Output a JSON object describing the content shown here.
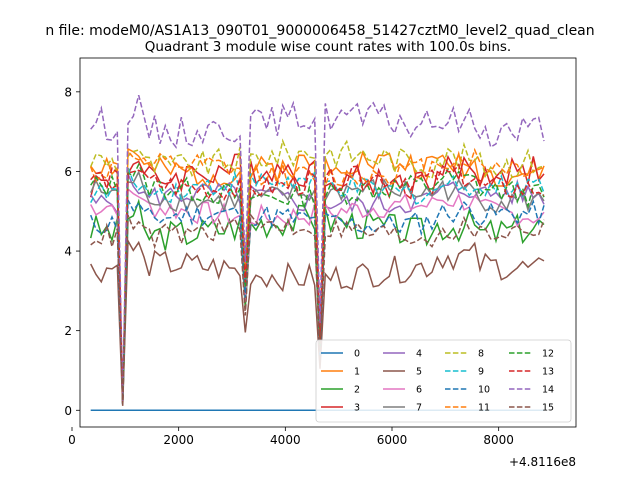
{
  "figure": {
    "suptitle": "n file: modeM0/AS1A13_090T01_9000006458_51427cztM0_level2_quad_clean",
    "title": "Quadrant 3 module wise count rates with 100.0s bins.",
    "x_offset_label": "+4.8116e8"
  },
  "chart_data": {
    "type": "line",
    "title": "Quadrant 3 module wise count rates with 100.0s bins.",
    "xlabel": "",
    "ylabel": "",
    "xlim": [
      150,
      9450
    ],
    "ylim": [
      -0.42,
      8.85
    ],
    "x_ticks": [
      0,
      2000,
      4000,
      6000,
      8000
    ],
    "y_ticks": [
      0,
      2,
      4,
      6,
      8
    ],
    "x_start": 350,
    "x_step": 100,
    "n_points": 86,
    "grid": false,
    "legend_position": "bottom-right",
    "legend_columns": 4,
    "series": [
      {
        "name": "0",
        "color": "#1f77b4",
        "dash": "solid",
        "base": 0.0,
        "amp": 0.0,
        "seed": 1
      },
      {
        "name": "1",
        "color": "#ff7f0e",
        "dash": "solid",
        "base": 6.1,
        "amp": 0.35,
        "seed": 2
      },
      {
        "name": "2",
        "color": "#2ca02c",
        "dash": "solid",
        "base": 4.6,
        "amp": 0.4,
        "seed": 3
      },
      {
        "name": "3",
        "color": "#d62728",
        "dash": "solid",
        "base": 5.9,
        "amp": 0.4,
        "seed": 4
      },
      {
        "name": "4",
        "color": "#9467bd",
        "dash": "solid",
        "base": 5.3,
        "amp": 0.3,
        "seed": 5
      },
      {
        "name": "5",
        "color": "#8c564b",
        "dash": "solid",
        "base": 3.5,
        "amp": 0.35,
        "seed": 6
      },
      {
        "name": "6",
        "color": "#e377c2",
        "dash": "solid",
        "base": 5.0,
        "amp": 0.3,
        "seed": 7
      },
      {
        "name": "7",
        "color": "#7f7f7f",
        "dash": "solid",
        "base": 5.4,
        "amp": 0.3,
        "seed": 8
      },
      {
        "name": "8",
        "color": "#bcbd22",
        "dash": "dashed",
        "base": 6.3,
        "amp": 0.35,
        "seed": 9
      },
      {
        "name": "9",
        "color": "#17becf",
        "dash": "dashed",
        "base": 5.6,
        "amp": 0.3,
        "seed": 10
      },
      {
        "name": "10",
        "color": "#1f77b4",
        "dash": "dashed",
        "base": 4.8,
        "amp": 0.3,
        "seed": 11
      },
      {
        "name": "11",
        "color": "#ff7f0e",
        "dash": "dashed",
        "base": 6.0,
        "amp": 0.3,
        "seed": 12
      },
      {
        "name": "12",
        "color": "#2ca02c",
        "dash": "dashed",
        "base": 5.5,
        "amp": 0.3,
        "seed": 13
      },
      {
        "name": "13",
        "color": "#d62728",
        "dash": "dashed",
        "base": 5.7,
        "amp": 0.3,
        "seed": 14
      },
      {
        "name": "14",
        "color": "#9467bd",
        "dash": "dashed",
        "base": 7.2,
        "amp": 0.4,
        "seed": 15
      },
      {
        "name": "15",
        "color": "#8c564b",
        "dash": "dashed",
        "base": 4.5,
        "amp": 0.3,
        "seed": 16
      }
    ],
    "dips": [
      {
        "x": 950,
        "factor": 0.03
      },
      {
        "x": 3250,
        "factor": 0.55
      },
      {
        "x": 4650,
        "factor": 0.3
      }
    ]
  }
}
